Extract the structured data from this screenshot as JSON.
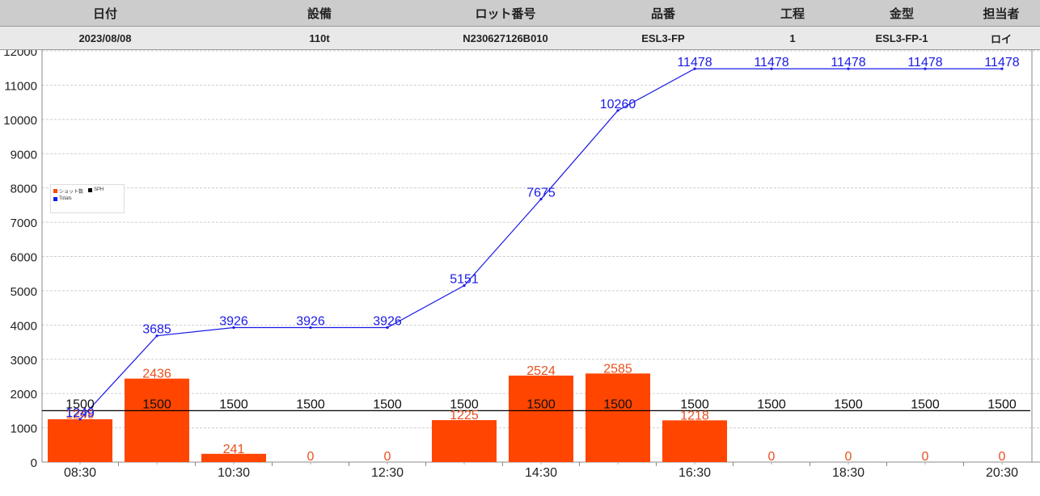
{
  "header": {
    "columns": [
      "日付",
      "設備",
      "ロット番号",
      "品番",
      "工程",
      "金型",
      "担当者"
    ],
    "values": [
      "2023/08/08",
      "110t",
      "N230627126B010",
      "ESL3-FP",
      "1",
      "ESL3-FP-1",
      "ロイ"
    ]
  },
  "legend": {
    "shots": "ショット数",
    "sph": "SPH",
    "totals": "Totals"
  },
  "colors": {
    "bar": "#ff4500",
    "bar_label": "#e8501e",
    "totals": "#1a1ae6",
    "sph": "#000000",
    "grid": "#cfcfcf"
  },
  "chart_data": {
    "type": "bar",
    "y_ticks": [
      0,
      1000,
      2000,
      3000,
      4000,
      5000,
      6000,
      7000,
      8000,
      9000,
      10000,
      11000,
      12000
    ],
    "ylim": [
      0,
      12000
    ],
    "x_tick_labels": [
      "08:30",
      "10:30",
      "12:30",
      "14:30",
      "16:30",
      "18:30",
      "20:30"
    ],
    "x_tick_positions": [
      0,
      2,
      4,
      6,
      8,
      10,
      12
    ],
    "series": [
      {
        "name": "ショット数",
        "type": "bar",
        "values": [
          1249,
          2436,
          241,
          0,
          0,
          1225,
          2524,
          2585,
          1218,
          0,
          0,
          0,
          0
        ]
      },
      {
        "name": "SPH",
        "type": "line",
        "values": [
          1500,
          1500,
          1500,
          1500,
          1500,
          1500,
          1500,
          1500,
          1500,
          1500,
          1500,
          1500,
          1500
        ]
      },
      {
        "name": "Totals",
        "type": "line",
        "values": [
          1249,
          3685,
          3926,
          3926,
          3926,
          5151,
          7675,
          10260,
          11478,
          11478,
          11478,
          11478,
          11478
        ]
      }
    ],
    "grid": true,
    "legend_position": "upper-left"
  }
}
